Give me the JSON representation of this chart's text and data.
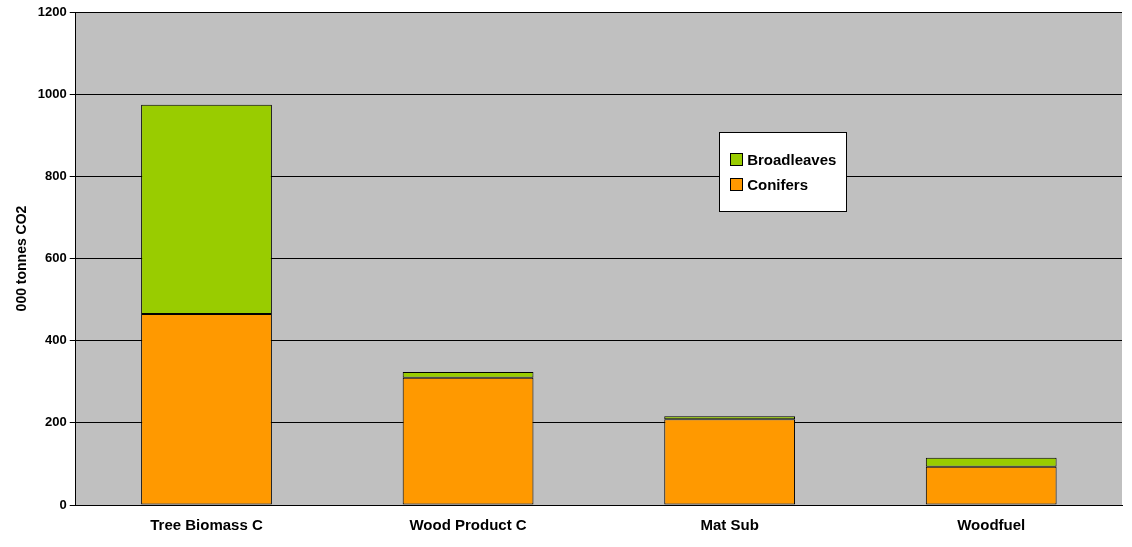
{
  "chart_data": {
    "type": "bar",
    "ylabel": "000 tonnes CO2",
    "categories": [
      "Tree Biomass C",
      "Wood Product C",
      "Mat Sub",
      "Woodfuel"
    ],
    "stacked": true,
    "series": [
      {
        "name": "Conifers",
        "color": "#ff9900",
        "values": [
          465,
          310,
          209,
          93
        ]
      },
      {
        "name": "Broadleaves",
        "color": "#99cc00",
        "values": [
          509,
          14,
          7,
          22
        ]
      }
    ],
    "ylim": [
      0,
      1200
    ],
    "yticks": [
      0,
      200,
      400,
      600,
      800,
      1000,
      1200
    ],
    "grid": "y",
    "legend": "top right"
  }
}
